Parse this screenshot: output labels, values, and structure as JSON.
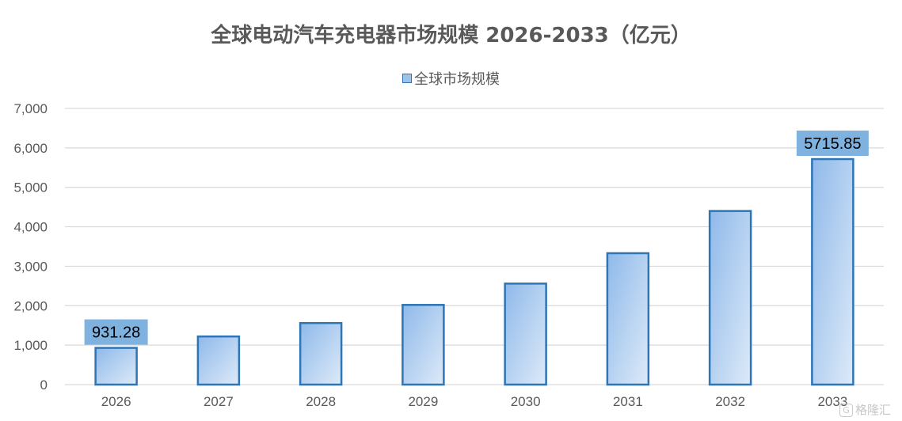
{
  "chart_data": {
    "type": "bar",
    "title": "全球电动汽车充电器市场规模 2026-2033（亿元）",
    "categories": [
      "2026",
      "2027",
      "2028",
      "2029",
      "2030",
      "2031",
      "2032",
      "2033"
    ],
    "series": [
      {
        "name": "全球市场规模",
        "values": [
          931.28,
          1220,
          1560,
          2020,
          2560,
          3330,
          4400,
          5715.85
        ]
      }
    ],
    "data_labels": [
      {
        "category": "2026",
        "text": "931.28"
      },
      {
        "category": "2033",
        "text": "5715.85"
      }
    ],
    "ylim": [
      0,
      7000
    ],
    "yticks": [
      "0",
      "1,000",
      "2,000",
      "3,000",
      "4,000",
      "5,000",
      "6,000",
      "7,000"
    ],
    "ytick_values": [
      0,
      1000,
      2000,
      3000,
      4000,
      5000,
      6000,
      7000
    ],
    "grid": true,
    "legend_position": "top",
    "colors": {
      "bar_fill_start": "#8fb9ea",
      "bar_fill_end": "#ddeaf8",
      "bar_stroke": "#2e75b6",
      "label_bg": "#7fb2df",
      "grid": "#d9d9d9",
      "axis_text": "#595959"
    }
  },
  "watermark": {
    "text": "格隆汇",
    "icon": "gelonghui-logo-icon"
  }
}
